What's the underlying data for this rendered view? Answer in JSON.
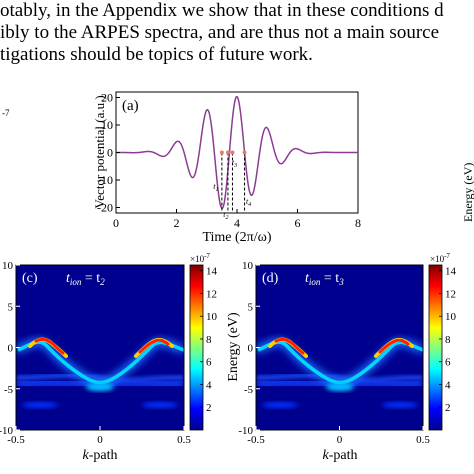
{
  "paper_text": {
    "lines": [
      "otably, in the Appendix we show that in these conditions d",
      "ibly to the ARPES spectra, and are thus not a main source",
      "tigations should be topics of future work."
    ],
    "left_margin_label": "-7"
  },
  "colors": {
    "curve": "#8b3d93",
    "marker": "#e8796f",
    "dash": "#000000"
  },
  "chart_data": [
    {
      "type": "line",
      "panel_label": "(a)",
      "xlabel": "Time (2π/ω)",
      "ylabel": "Vector potential (a.u.)",
      "xlim": [
        0,
        8
      ],
      "ylim": [
        -22,
        22
      ],
      "xticks": [
        "0",
        "2",
        "4",
        "6",
        "8"
      ],
      "yticks": [
        "20",
        "10",
        "0",
        "-10",
        "-20"
      ],
      "curve": {
        "center": 3.75,
        "omega": 6.2832,
        "envelope_width": 1.35,
        "amplitude": 21
      },
      "markers_x": [
        3.5,
        3.7,
        3.85,
        4.25
      ],
      "time_labels": [
        "t1",
        "t2",
        "t3",
        "t4"
      ],
      "right_cut_label": "Energy (eV)"
    },
    {
      "type": "heatmap",
      "panel_label": "(c)",
      "title_t": "t",
      "title_sub": "ion",
      "title_eq": " = t",
      "title_eq_sub": "2",
      "xlabel": "k-path",
      "ylabel": "",
      "xlim": [
        -0.5,
        0.5
      ],
      "ylim": [
        -10,
        10
      ],
      "xticks": [
        "-0.5",
        "0",
        "0.5"
      ],
      "yticks": [
        "10",
        "5",
        "0",
        "-5",
        "-10"
      ]
    },
    {
      "type": "heatmap",
      "panel_label": "(d)",
      "title_t": "t",
      "title_sub": "ion",
      "title_eq": " = t",
      "title_eq_sub": "3",
      "xlabel": "k-path",
      "ylabel": "Energy (eV)",
      "xlim": [
        -0.5,
        0.5
      ],
      "ylim": [
        -10,
        10
      ],
      "xticks": [
        "-0.5",
        "0",
        "0.5"
      ],
      "yticks": [
        "10",
        "5",
        "0",
        "-5",
        "-10"
      ]
    }
  ],
  "colorbar": {
    "exponent": "×10",
    "exponent_power": "-7",
    "ticks": [
      "14",
      "12",
      "10",
      "8",
      "6",
      "4",
      "2"
    ],
    "range": [
      0,
      14.5
    ]
  }
}
